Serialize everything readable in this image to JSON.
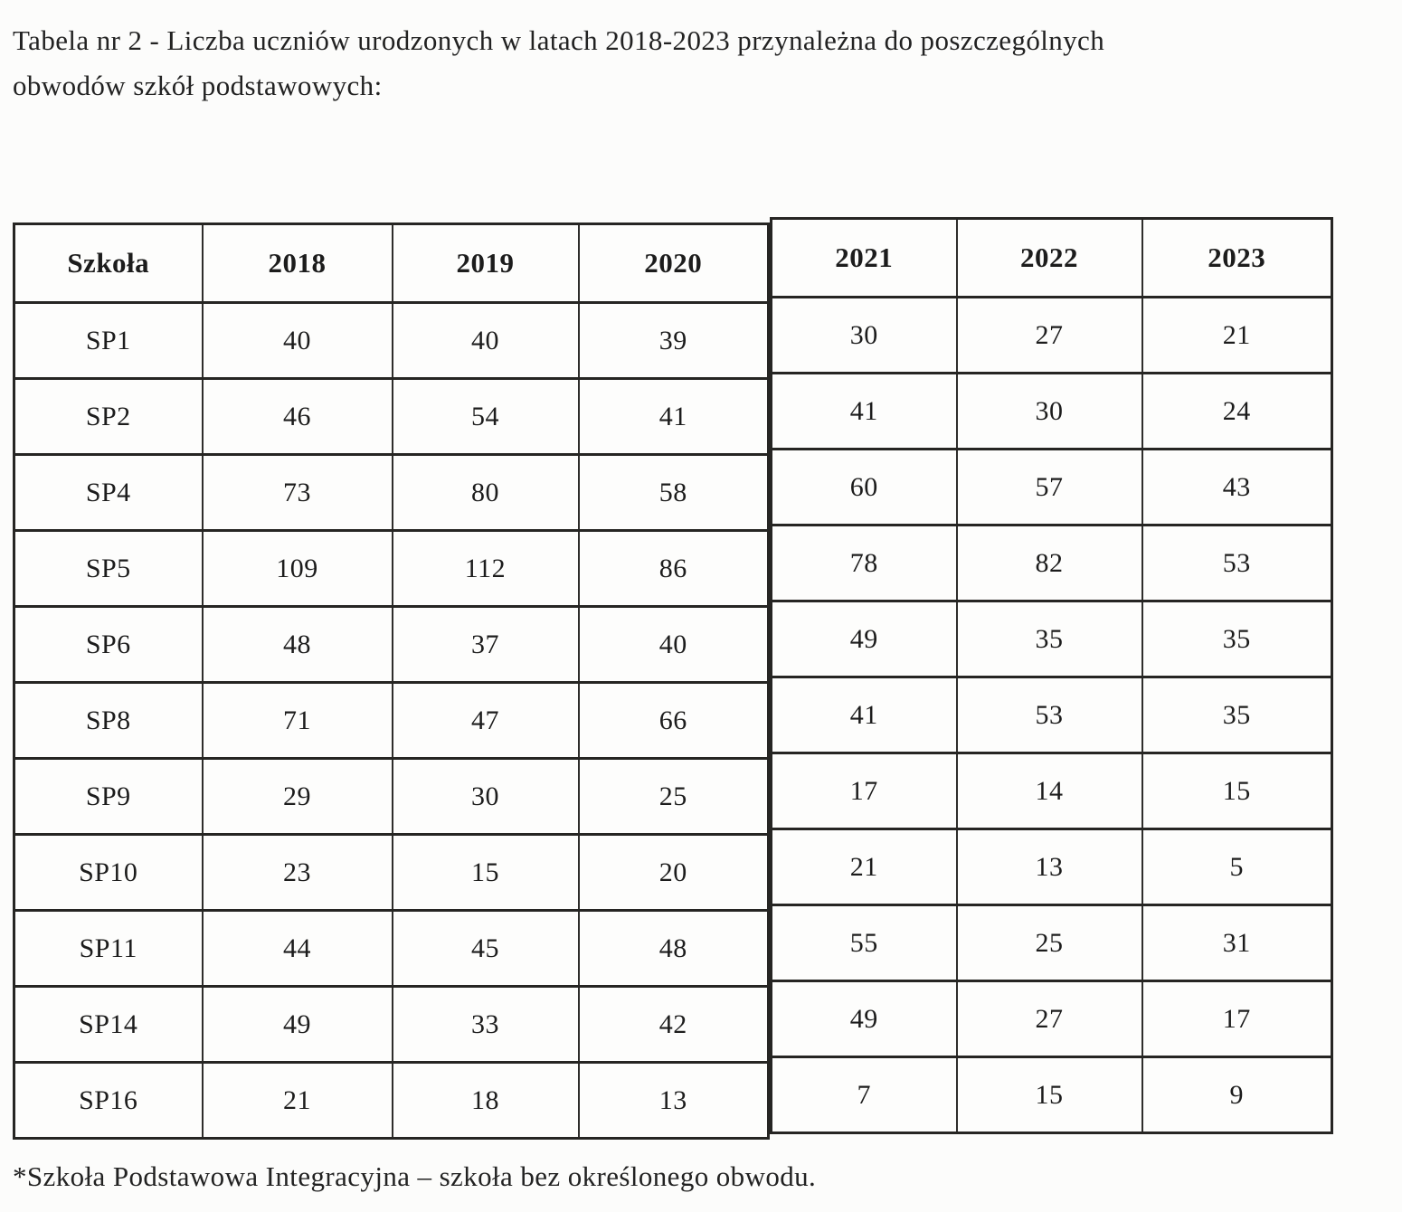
{
  "doc": {
    "title_line1": "Tabela nr 2 -  Liczba uczniów urodzonych w latach 2018-2023 przynależna do poszczególnych",
    "title_line2": "obwodów szkół podstawowych:",
    "footnote": "*Szkoła Podstawowa Integracyjna – szkoła bez określonego obwodu.",
    "table": {
      "header": [
        "Szkoła",
        "2018",
        "2019",
        "2020",
        "2021",
        "2022",
        "2023"
      ],
      "rows": [
        [
          "SP1",
          "40",
          "40",
          "39",
          "30",
          "27",
          "21"
        ],
        [
          "SP2",
          "46",
          "54",
          "41",
          "41",
          "30",
          "24"
        ],
        [
          "SP4",
          "73",
          "80",
          "58",
          "60",
          "57",
          "43"
        ],
        [
          "SP5",
          "109",
          "112",
          "86",
          "78",
          "82",
          "53"
        ],
        [
          "SP6",
          "48",
          "37",
          "40",
          "49",
          "35",
          "35"
        ],
        [
          "SP8",
          "71",
          "47",
          "66",
          "41",
          "53",
          "35"
        ],
        [
          "SP9",
          "29",
          "30",
          "25",
          "17",
          "14",
          "15"
        ],
        [
          "SP10",
          "23",
          "15",
          "20",
          "21",
          "13",
          "5"
        ],
        [
          "SP11",
          "44",
          "45",
          "48",
          "55",
          "25",
          "31"
        ],
        [
          "SP14",
          "49",
          "33",
          "42",
          "49",
          "27",
          "17"
        ],
        [
          "SP16",
          "21",
          "18",
          "13",
          "7",
          "15",
          "9"
        ]
      ]
    }
  }
}
